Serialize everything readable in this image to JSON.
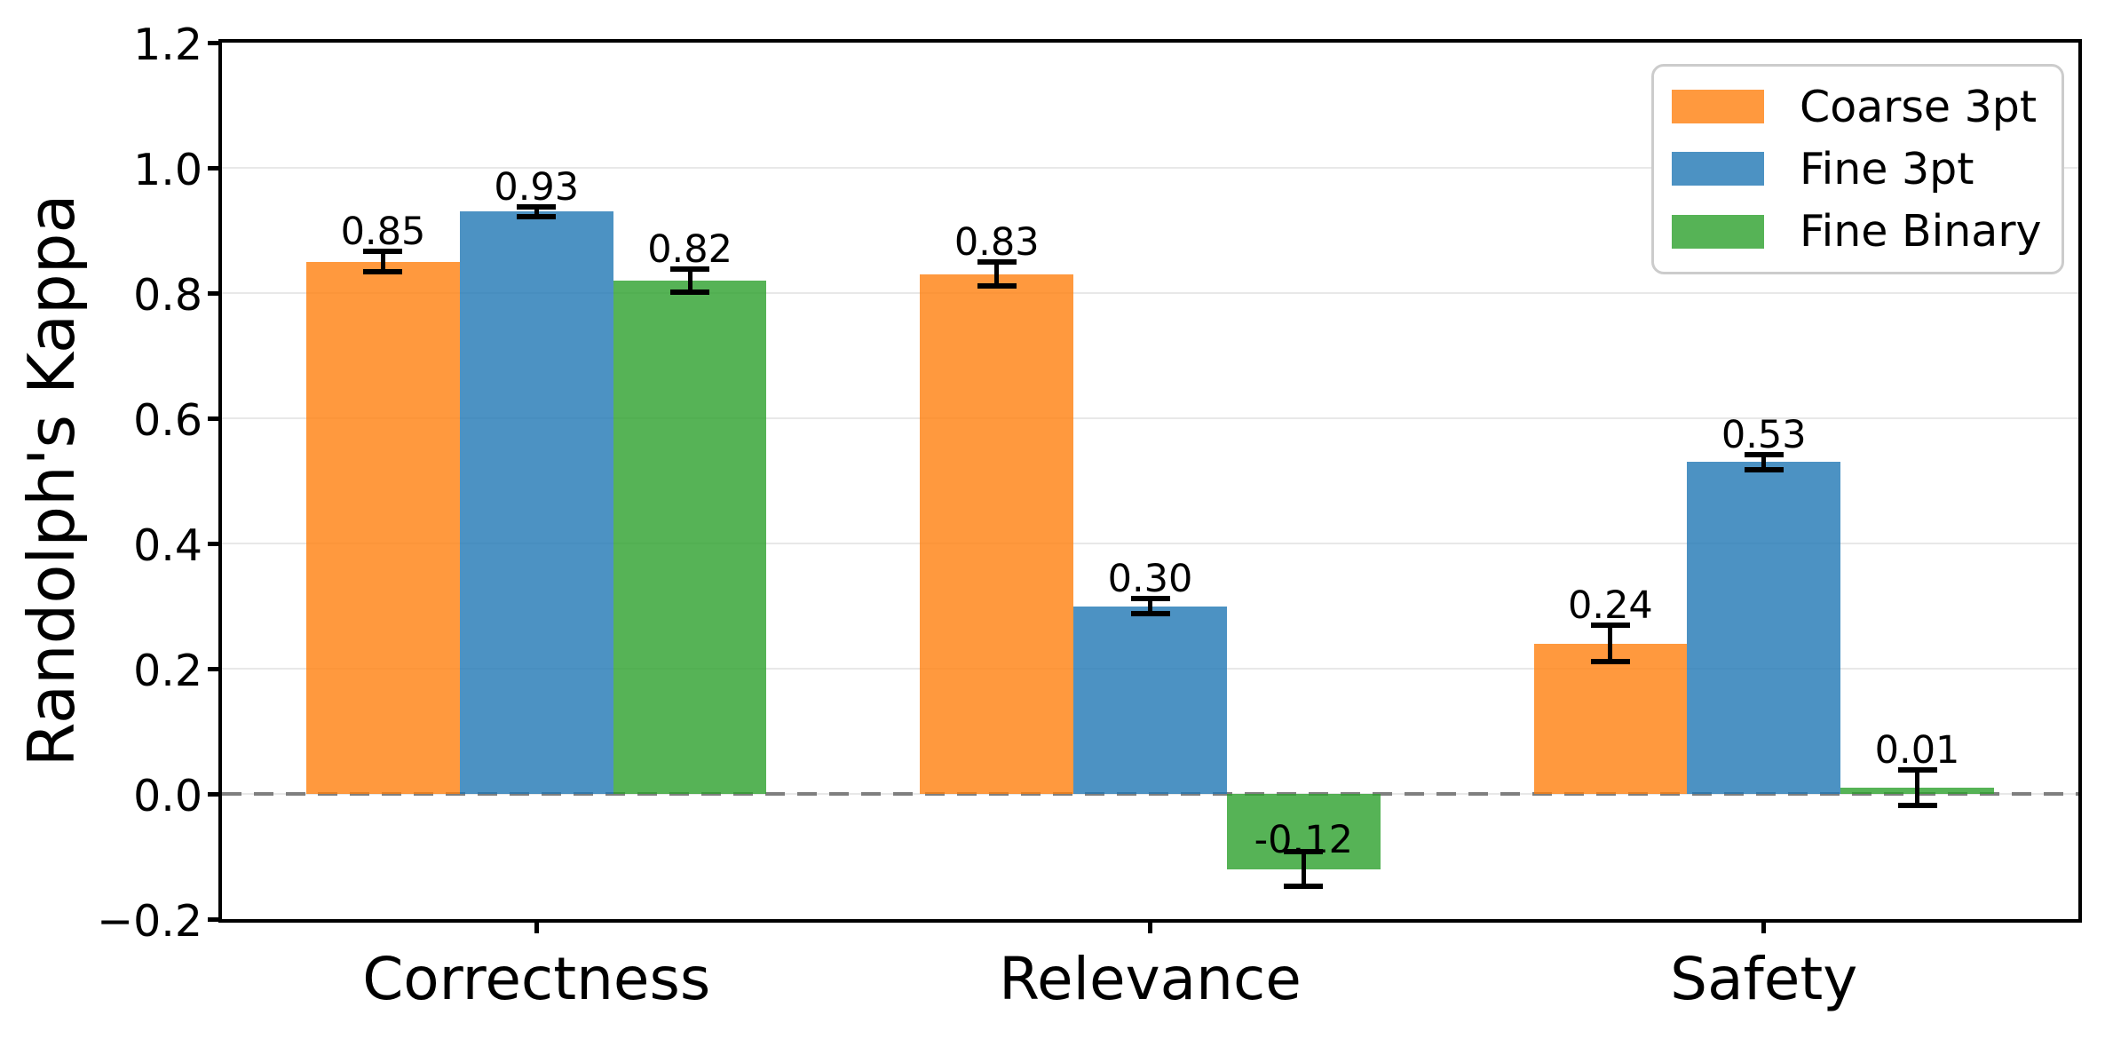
{
  "chart_data": {
    "type": "bar",
    "title": "",
    "ylabel": "Randolph's Kappa",
    "xlabel": "",
    "categories": [
      "Correctness",
      "Relevance",
      "Safety"
    ],
    "series": [
      {
        "name": "Coarse 3pt",
        "color": "#ff7f0e",
        "values": [
          0.85,
          0.83,
          0.24
        ],
        "errors": [
          0.016,
          0.019,
          0.029
        ],
        "value_labels": [
          "0.85",
          "0.83",
          "0.24"
        ]
      },
      {
        "name": "Fine 3pt",
        "color": "#1f77b4",
        "values": [
          0.93,
          0.3,
          0.53
        ],
        "errors": [
          0.008,
          0.012,
          0.012
        ],
        "value_labels": [
          "0.93",
          "0.30",
          "0.53"
        ]
      },
      {
        "name": "Fine Binary",
        "color": "#2ca02c",
        "values": [
          0.82,
          -0.12,
          0.01
        ],
        "errors": [
          0.019,
          0.028,
          0.028
        ],
        "value_labels": [
          "0.82",
          "-0.12",
          "0.01"
        ]
      }
    ],
    "bar_alpha": 0.8,
    "ylim": [
      -0.2,
      1.2
    ],
    "yticks": [
      -0.2,
      0.0,
      0.2,
      0.4,
      0.6,
      0.8,
      1.0,
      1.2
    ],
    "ytick_labels": [
      "−0.2",
      "0.0",
      "0.2",
      "0.4",
      "0.6",
      "0.8",
      "1.0",
      "1.2"
    ],
    "grid": "horizontal",
    "zero_line": "dashed",
    "legend_position": "upper right",
    "legend_labels": [
      "Coarse 3pt",
      "Fine 3pt",
      "Fine Binary"
    ]
  },
  "colors": {
    "grid": "#e8e8e8",
    "zero_line": "#7f7f7f",
    "spine": "#000000",
    "error_bar": "#000000",
    "text": "#000000",
    "legend_border": "#cccccc",
    "background": "#ffffff"
  }
}
